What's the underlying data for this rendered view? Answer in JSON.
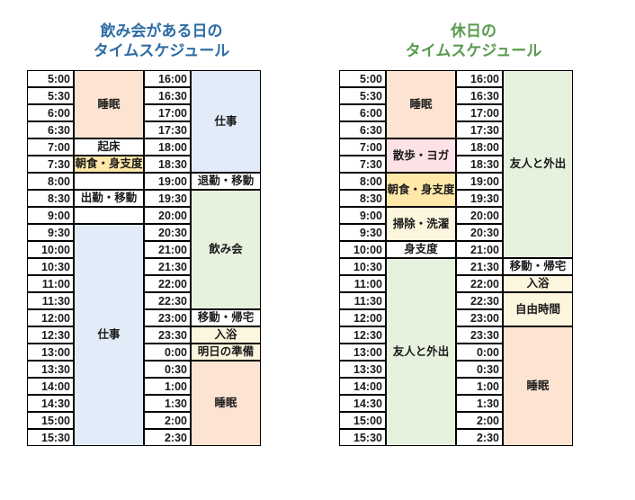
{
  "colors": {
    "blueTitle": "#2e6ca4",
    "greenTitle": "#5a9a4e",
    "none": "#ffffff",
    "peach": "#fde3d1",
    "blue": "#e1ecf8",
    "orange": "#ffe8a8",
    "green": "#e6f2de",
    "cream": "#fdf6de",
    "pink": "#fce1e6"
  },
  "panels": [
    {
      "id": "drinking-day",
      "titleColorKey": "blueTitle",
      "titleLine1": "飲み会がある日の",
      "titleLine2": "タイムスケジュール",
      "left": {
        "times": [
          "5:00",
          "5:30",
          "6:00",
          "6:30",
          "7:00",
          "7:30",
          "8:00",
          "8:30",
          "9:00",
          "9:30",
          "10:00",
          "10:30",
          "11:00",
          "11:30",
          "12:00",
          "12:30",
          "13:00",
          "13:30",
          "14:00",
          "14:30",
          "15:00",
          "15:30"
        ],
        "activities": [
          {
            "label": "睡眠",
            "span": 4,
            "colorKey": "peach"
          },
          {
            "label": "起床",
            "span": 1,
            "colorKey": "none"
          },
          {
            "label": "朝食・身支度",
            "span": 1,
            "colorKey": "orange"
          },
          {
            "label": "",
            "span": 1,
            "colorKey": "none"
          },
          {
            "label": "出勤・移動",
            "span": 1,
            "colorKey": "none"
          },
          {
            "label": "",
            "span": 1,
            "colorKey": "none"
          },
          {
            "label": "仕事",
            "span": 13,
            "colorKey": "blue"
          }
        ]
      },
      "right": {
        "times": [
          "16:00",
          "16:30",
          "17:00",
          "17:30",
          "18:00",
          "18:30",
          "19:00",
          "19:30",
          "20:00",
          "20:30",
          "21:00",
          "21:30",
          "22:00",
          "22:30",
          "23:00",
          "23:30",
          "0:00",
          "0:30",
          "1:00",
          "1:30",
          "2:00",
          "2:30"
        ],
        "activities": [
          {
            "label": "仕事",
            "span": 6,
            "colorKey": "blue"
          },
          {
            "label": "退勤・移動",
            "span": 1,
            "colorKey": "none"
          },
          {
            "label": "飲み会",
            "span": 7,
            "colorKey": "green"
          },
          {
            "label": "移動・帰宅",
            "span": 1,
            "colorKey": "none"
          },
          {
            "label": "入浴",
            "span": 1,
            "colorKey": "cream"
          },
          {
            "label": "明日の準備",
            "span": 1,
            "colorKey": "cream"
          },
          {
            "label": "睡眠",
            "span": 5,
            "colorKey": "peach"
          }
        ]
      }
    },
    {
      "id": "holiday",
      "titleColorKey": "greenTitle",
      "titleLine1": "休日の",
      "titleLine2": "タイムスケジュール",
      "left": {
        "times": [
          "5:00",
          "5:30",
          "6:00",
          "6:30",
          "7:00",
          "7:30",
          "8:00",
          "8:30",
          "9:00",
          "9:30",
          "10:00",
          "10:30",
          "11:00",
          "11:30",
          "12:00",
          "12:30",
          "13:00",
          "13:30",
          "14:00",
          "14:30",
          "15:00",
          "15:30"
        ],
        "activities": [
          {
            "label": "睡眠",
            "span": 4,
            "colorKey": "peach"
          },
          {
            "label": "散歩・ヨガ",
            "span": 2,
            "colorKey": "pink"
          },
          {
            "label": "朝食・身支度",
            "span": 2,
            "colorKey": "orange"
          },
          {
            "label": "掃除・洗濯",
            "span": 2,
            "colorKey": "cream"
          },
          {
            "label": "身支度",
            "span": 1,
            "colorKey": "none"
          },
          {
            "label": "友人と外出",
            "span": 11,
            "colorKey": "green"
          }
        ]
      },
      "right": {
        "times": [
          "16:00",
          "16:30",
          "17:00",
          "17:30",
          "18:00",
          "18:30",
          "19:00",
          "19:30",
          "20:00",
          "20:30",
          "21:00",
          "21:30",
          "22:00",
          "22:30",
          "23:00",
          "23:30",
          "0:00",
          "0:30",
          "1:00",
          "1:30",
          "2:00",
          "2:30"
        ],
        "activities": [
          {
            "label": "友人と外出",
            "span": 11,
            "colorKey": "green"
          },
          {
            "label": "移動・帰宅",
            "span": 1,
            "colorKey": "none"
          },
          {
            "label": "入浴",
            "span": 1,
            "colorKey": "cream"
          },
          {
            "label": "自由時間",
            "span": 2,
            "colorKey": "cream"
          },
          {
            "label": "睡眠",
            "span": 7,
            "colorKey": "peach"
          }
        ]
      }
    }
  ]
}
